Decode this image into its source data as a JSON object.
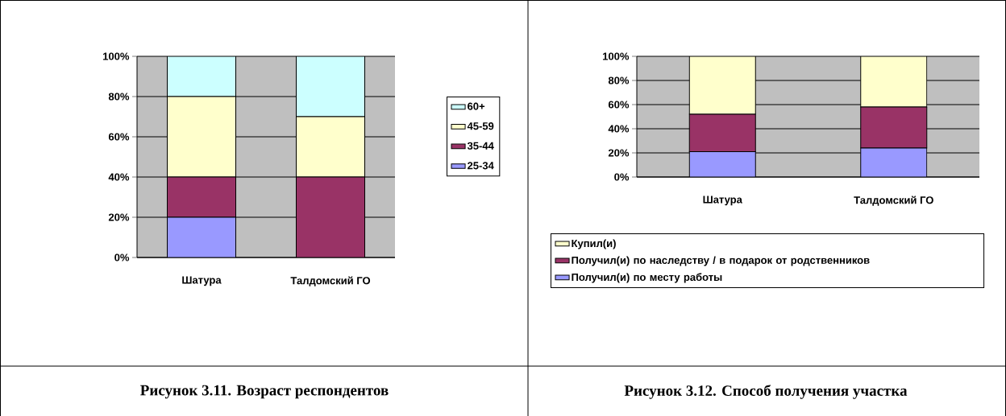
{
  "chart_data": [
    {
      "type": "bar",
      "stacked": true,
      "categories": [
        "Шатура",
        "Талдомский ГО"
      ],
      "ylim": [
        0,
        100
      ],
      "yticks": [
        {
          "value": 0,
          "label": "0%"
        },
        {
          "value": 20,
          "label": "20%"
        },
        {
          "value": 40,
          "label": "40%"
        },
        {
          "value": 60,
          "label": "60%"
        },
        {
          "value": 80,
          "label": "80%"
        },
        {
          "value": 100,
          "label": "100%"
        }
      ],
      "grid": "y",
      "legend": "right",
      "annotations": [
        "Рисунок 3.11. Возраст респондентов"
      ],
      "series": [
        {
          "name": "25-34",
          "color": "#9999ff",
          "values": [
            20,
            0
          ]
        },
        {
          "name": "35-44",
          "color": "#993366",
          "values": [
            20,
            40
          ]
        },
        {
          "name": "45-59",
          "color": "#ffffcc",
          "values": [
            40,
            30
          ]
        },
        {
          "name": "60+",
          "color": "#ccffff",
          "values": [
            20,
            30
          ]
        }
      ]
    },
    {
      "type": "bar",
      "stacked": true,
      "categories": [
        "Шатура",
        "Талдомский ГО"
      ],
      "ylim": [
        0,
        100
      ],
      "yticks": [
        {
          "value": 0,
          "label": "0%"
        },
        {
          "value": 20,
          "label": "20%"
        },
        {
          "value": 40,
          "label": "40%"
        },
        {
          "value": 60,
          "label": "60%"
        },
        {
          "value": 80,
          "label": "80%"
        },
        {
          "value": 100,
          "label": "100%"
        }
      ],
      "grid": "y",
      "legend": "bottom",
      "annotations": [
        "Рисунок 3.12. Способ получения участка"
      ],
      "series": [
        {
          "name": "Получил(и) по месту работы",
          "color": "#9999ff",
          "values": [
            21,
            24
          ]
        },
        {
          "name": "Получил(и) по наследству / в подарок от родственников",
          "color": "#993366",
          "values": [
            31,
            34
          ]
        },
        {
          "name": "Купил(и)",
          "color": "#ffffcc",
          "values": [
            48,
            42
          ]
        }
      ]
    }
  ]
}
